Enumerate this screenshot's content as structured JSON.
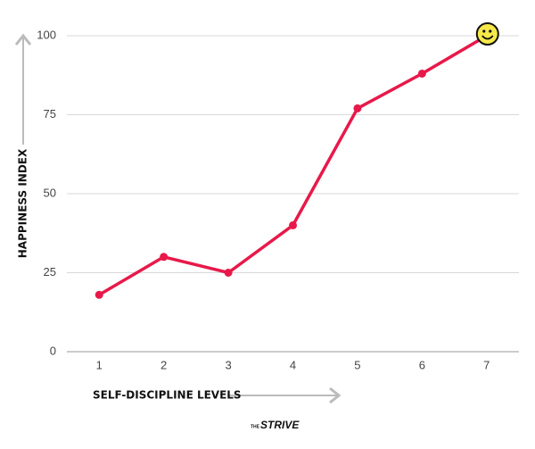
{
  "chart_data": {
    "type": "line",
    "x_label": "SELF-DISCIPLINE LEVELS",
    "y_label": "HAPPINESS INDEX",
    "brand_prefix": "THE",
    "brand": "STRIVE",
    "categories": [
      "1",
      "2",
      "3",
      "4",
      "5",
      "6",
      "7"
    ],
    "series": [
      {
        "name": "Happiness",
        "color": "#e8194a",
        "values": [
          18,
          30,
          25,
          40,
          77,
          88,
          100
        ]
      }
    ],
    "ylim": [
      0,
      100
    ],
    "yticks": [
      0,
      25,
      50,
      75,
      100
    ],
    "grid": true
  }
}
